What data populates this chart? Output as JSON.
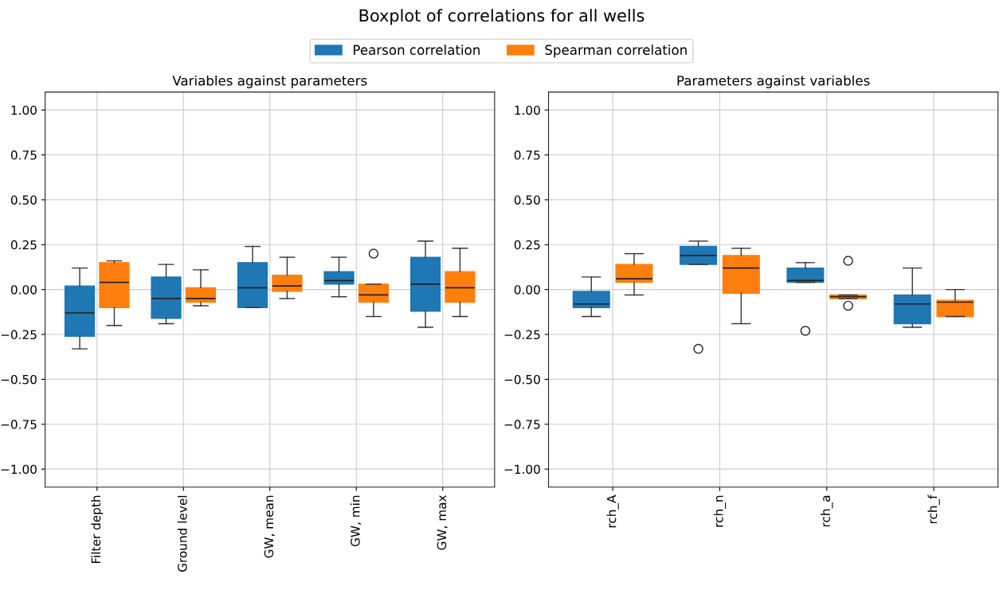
{
  "chart_data": [
    {
      "type": "box",
      "title": "Boxplot of correlations for all wells",
      "subtitle": "Variables against parameters",
      "legend": "top",
      "grid": true,
      "categories": [
        "Filter depth",
        "Ground level",
        "GW, mean",
        "GW, min",
        "GW, max"
      ],
      "ylim": [
        -1.1,
        1.1
      ],
      "yticks": [
        {
          "value": -1,
          "label": "−1.00"
        },
        {
          "value": -0.75,
          "label": "−0.75"
        },
        {
          "value": -0.5,
          "label": "−0.50"
        },
        {
          "value": -0.25,
          "label": "−0.25"
        },
        {
          "value": 0,
          "label": "0.00"
        },
        {
          "value": 0.25,
          "label": "0.25"
        },
        {
          "value": 0.5,
          "label": "0.50"
        },
        {
          "value": 0.75,
          "label": "0.75"
        },
        {
          "value": 1,
          "label": "1.00"
        }
      ],
      "series": [
        {
          "name": "Pearson correlation",
          "color": "#1f77b4",
          "boxes": [
            {
              "low": -0.33,
              "q1": -0.26,
              "median": -0.13,
              "q3": 0.02,
              "high": 0.12
            },
            {
              "low": -0.19,
              "q1": -0.16,
              "median": -0.05,
              "q3": 0.07,
              "high": 0.14
            },
            {
              "low": -0.1,
              "q1": -0.1,
              "median": 0.01,
              "q3": 0.15,
              "high": 0.24
            },
            {
              "low": -0.04,
              "q1": 0.03,
              "median": 0.05,
              "q3": 0.1,
              "high": 0.18
            },
            {
              "low": -0.21,
              "q1": -0.12,
              "median": 0.03,
              "q3": 0.18,
              "high": 0.27
            }
          ]
        },
        {
          "name": "Spearman correlation",
          "color": "#ff7f0e",
          "boxes": [
            {
              "low": -0.2,
              "q1": -0.1,
              "median": 0.04,
              "q3": 0.15,
              "high": 0.16
            },
            {
              "low": -0.09,
              "q1": -0.07,
              "median": -0.05,
              "q3": 0.01,
              "high": 0.11
            },
            {
              "low": -0.05,
              "q1": -0.01,
              "median": 0.02,
              "q3": 0.08,
              "high": 0.18
            },
            {
              "low": -0.15,
              "q1": -0.07,
              "median": -0.03,
              "q3": 0.03,
              "high": 0.03,
              "outliers": [
                0.2
              ]
            },
            {
              "low": -0.15,
              "q1": -0.07,
              "median": 0.01,
              "q3": 0.1,
              "high": 0.23
            }
          ]
        }
      ]
    },
    {
      "type": "box",
      "subtitle": "Parameters against variables",
      "grid": true,
      "categories": [
        "rch_A",
        "rch_n",
        "rch_a",
        "rch_f"
      ],
      "ylim": [
        -1.1,
        1.1
      ],
      "yticks": [
        {
          "value": -1,
          "label": "−1.00"
        },
        {
          "value": -0.75,
          "label": "−0.75"
        },
        {
          "value": -0.5,
          "label": "−0.50"
        },
        {
          "value": -0.25,
          "label": "−0.25"
        },
        {
          "value": 0,
          "label": "0.00"
        },
        {
          "value": 0.25,
          "label": "0.25"
        },
        {
          "value": 0.5,
          "label": "0.50"
        },
        {
          "value": 0.75,
          "label": "0.75"
        },
        {
          "value": 1,
          "label": "1.00"
        }
      ],
      "series": [
        {
          "color": "#1f77b4",
          "boxes": [
            {
              "low": -0.15,
              "q1": -0.1,
              "median": -0.08,
              "q3": -0.01,
              "high": 0.07
            },
            {
              "low": 0.14,
              "q1": 0.14,
              "median": 0.19,
              "q3": 0.24,
              "high": 0.27,
              "outliers": [
                -0.33
              ]
            },
            {
              "low": 0.04,
              "q1": 0.04,
              "median": 0.05,
              "q3": 0.12,
              "high": 0.15,
              "outliers": [
                -0.23
              ]
            },
            {
              "low": -0.21,
              "q1": -0.19,
              "median": -0.08,
              "q3": -0.03,
              "high": 0.12
            }
          ]
        },
        {
          "color": "#ff7f0e",
          "boxes": [
            {
              "low": -0.03,
              "q1": 0.04,
              "median": 0.06,
              "q3": 0.14,
              "high": 0.2
            },
            {
              "low": -0.19,
              "q1": -0.02,
              "median": 0.12,
              "q3": 0.19,
              "high": 0.23
            },
            {
              "low": -0.05,
              "q1": -0.05,
              "median": -0.04,
              "q3": -0.03,
              "high": -0.03,
              "outliers": [
                0.16,
                -0.09
              ]
            },
            {
              "low": -0.15,
              "q1": -0.15,
              "median": -0.07,
              "q3": -0.06,
              "high": 0.0
            }
          ]
        }
      ]
    }
  ]
}
